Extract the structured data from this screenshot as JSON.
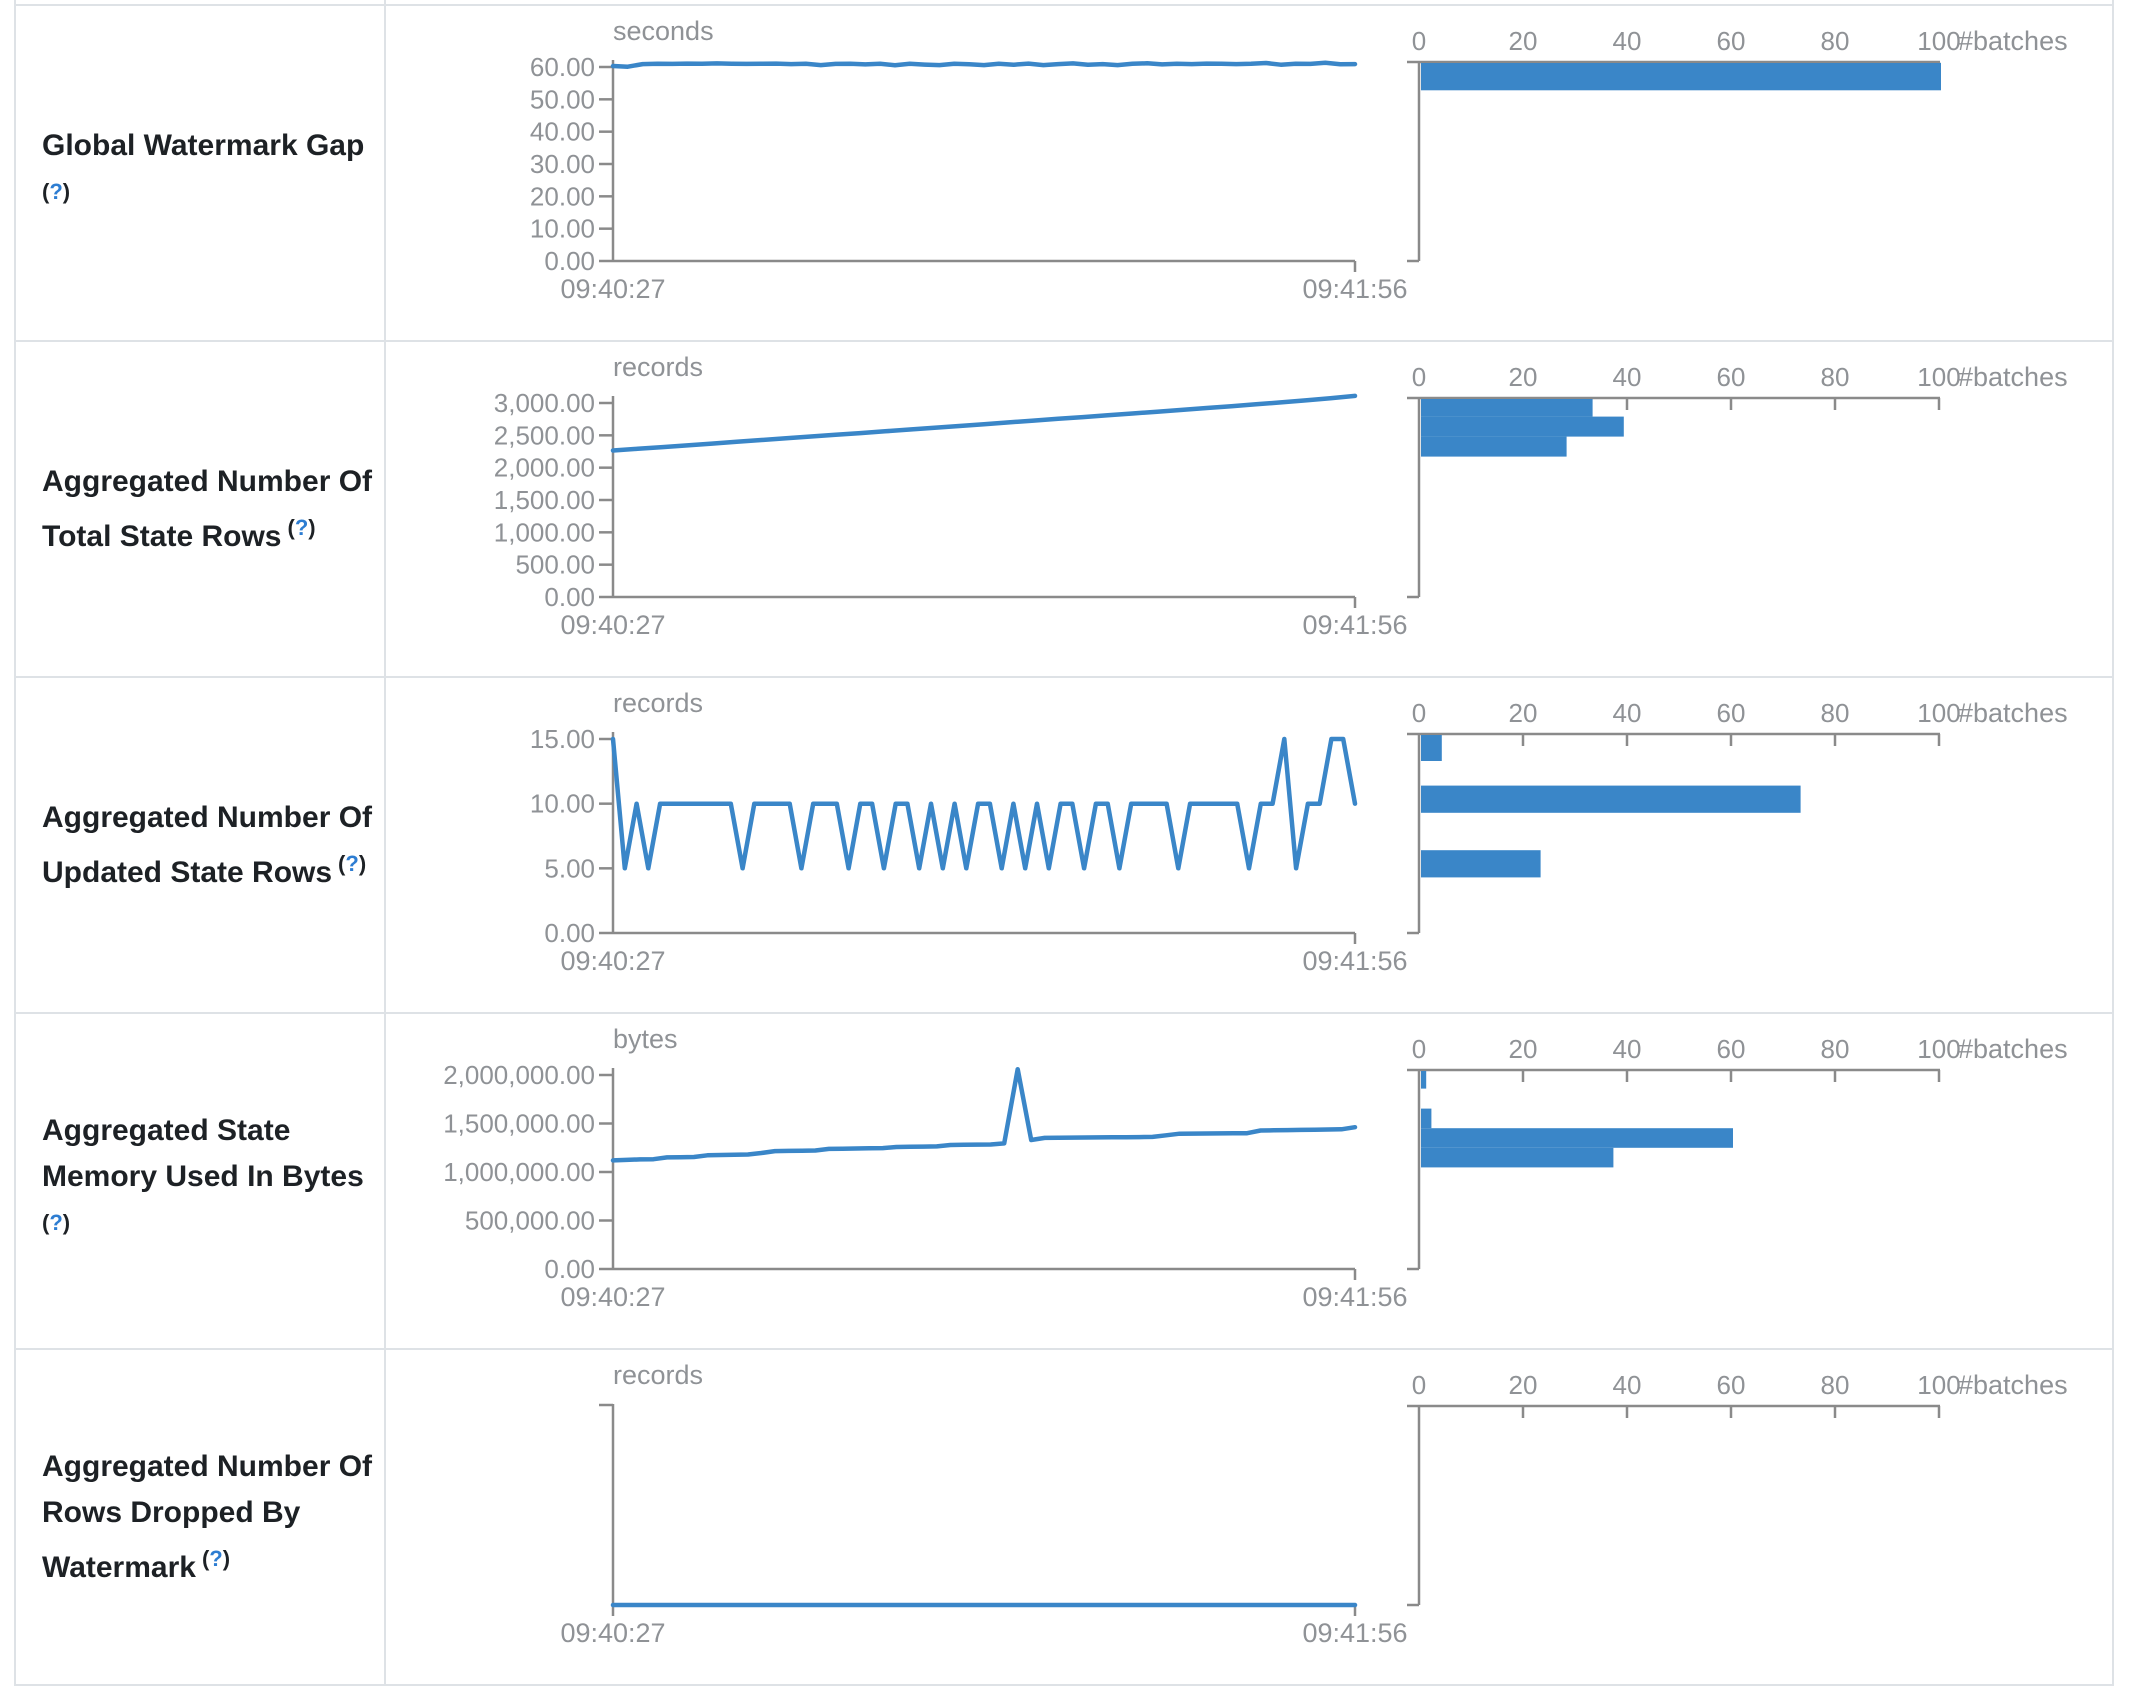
{
  "colors": {
    "series_blue": "#3a86c8",
    "axis_gray": "#8a8a8a",
    "tick_text_gray": "#8f9296",
    "label_text": "#1d2125",
    "help_link_blue": "#2d7dd2",
    "table_border": "#dee2e6"
  },
  "x_axis": {
    "start_label": "09:40:27",
    "end_label": "09:41:56"
  },
  "histogram_axis": {
    "tick_values": [
      0,
      20,
      40,
      60,
      80,
      100
    ],
    "tick_labels": [
      "0",
      "20",
      "40",
      "60",
      "80",
      "100"
    ],
    "axis_label": "#batches",
    "max": 100
  },
  "rows": [
    {
      "label_lines": [
        "Global Watermark Gap",
        ""
      ],
      "help": {
        "open": "(",
        "mark": "?",
        "close": ")"
      }
    },
    {
      "label_lines": [
        "Aggregated Number Of",
        "Total State Rows"
      ],
      "help": {
        "open": "(",
        "mark": "?",
        "close": ")"
      }
    },
    {
      "label_lines": [
        "Aggregated Number Of",
        "Updated State Rows"
      ],
      "help": {
        "open": "(",
        "mark": "?",
        "close": ")"
      }
    },
    {
      "label_lines": [
        "Aggregated State",
        "Memory Used In Bytes",
        ""
      ],
      "help": {
        "open": "(",
        "mark": "?",
        "close": ")"
      }
    },
    {
      "label_lines": [
        "Aggregated Number Of",
        "Rows Dropped By",
        "Watermark"
      ],
      "help": {
        "open": "(",
        "mark": "?",
        "close": ")"
      }
    }
  ],
  "chart_data": [
    {
      "title": "Global Watermark Gap",
      "type": "line",
      "timeline": {
        "unit": "seconds",
        "x_range": [
          "09:40:27",
          "09:41:56"
        ],
        "ylim": [
          0,
          60
        ],
        "ytick_values": [
          0,
          10,
          20,
          30,
          40,
          50,
          60
        ],
        "ytick_labels": [
          "0.00",
          "10.00",
          "20.00",
          "30.00",
          "40.00",
          "50.00",
          "60.00"
        ],
        "values": [
          60.3,
          60.1,
          60.9,
          61.0,
          60.95,
          61.05,
          61.0,
          61.1,
          61.0,
          60.95,
          61.0,
          61.05,
          60.9,
          61.0,
          60.6,
          60.95,
          61.0,
          60.8,
          61.0,
          60.55,
          61.0,
          60.75,
          60.6,
          61.0,
          60.85,
          60.6,
          61.0,
          60.7,
          61.05,
          60.6,
          60.9,
          61.1,
          60.7,
          60.9,
          60.6,
          61.0,
          61.15,
          60.8,
          61.0,
          60.9,
          61.05,
          61.0,
          60.9,
          61.0,
          61.25,
          60.7,
          61.0,
          60.95,
          61.3,
          60.85,
          60.9
        ]
      },
      "histogram": {
        "xlabel": "#batches",
        "xlim": [
          0,
          100
        ],
        "bins": [
          {
            "lo": 52.8,
            "hi": 61.4,
            "count": 100
          }
        ]
      }
    },
    {
      "title": "Aggregated Number Of Total State Rows",
      "type": "line",
      "timeline": {
        "unit": "records",
        "x_range": [
          "09:40:27",
          "09:41:56"
        ],
        "ylim": [
          0,
          3000
        ],
        "ytick_values": [
          0,
          500,
          1000,
          1500,
          2000,
          2500,
          3000
        ],
        "ytick_labels": [
          "0.00",
          "500.00",
          "1,000.00",
          "1,500.00",
          "2,000.00",
          "2,500.00",
          "3,000.00"
        ],
        "values": [
          2265,
          2292,
          2318,
          2345,
          2372,
          2400,
          2428,
          2455,
          2482,
          2508,
          2535,
          2562,
          2590,
          2618,
          2645,
          2672,
          2700,
          2728,
          2755,
          2782,
          2810,
          2838,
          2866,
          2894,
          2922,
          2950,
          2980,
          3010,
          3040,
          3075,
          3110
        ]
      },
      "histogram": {
        "xlabel": "#batches",
        "xlim": [
          0,
          100
        ],
        "bins": [
          {
            "lo": 2790,
            "hi": 3110,
            "count": 33
          },
          {
            "lo": 2480,
            "hi": 2790,
            "count": 39
          },
          {
            "lo": 2170,
            "hi": 2480,
            "count": 28
          }
        ]
      }
    },
    {
      "title": "Aggregated Number Of Updated State Rows",
      "type": "line",
      "timeline": {
        "unit": "records",
        "x_range": [
          "09:40:27",
          "09:41:56"
        ],
        "ylim": [
          0,
          15
        ],
        "ytick_values": [
          0,
          5,
          10,
          15
        ],
        "ytick_labels": [
          "0.00",
          "5.00",
          "10.00",
          "15.00"
        ],
        "values": [
          15,
          5,
          10,
          5,
          10,
          10,
          10,
          10,
          10,
          10,
          10,
          5,
          10,
          10,
          10,
          10,
          5,
          10,
          10,
          10,
          5,
          10,
          10,
          5,
          10,
          10,
          5,
          10,
          5,
          10,
          5,
          10,
          10,
          5,
          10,
          5,
          10,
          5,
          10,
          10,
          5,
          10,
          10,
          5,
          10,
          10,
          10,
          10,
          5,
          10,
          10,
          10,
          10,
          10,
          5,
          10,
          10,
          15,
          5,
          10,
          10,
          15,
          15,
          10
        ]
      },
      "histogram": {
        "xlabel": "#batches",
        "xlim": [
          0,
          100
        ],
        "bins": [
          {
            "lo": 13.3,
            "hi": 15.4,
            "count": 4
          },
          {
            "lo": 9.3,
            "hi": 11.4,
            "count": 73
          },
          {
            "lo": 4.3,
            "hi": 6.4,
            "count": 23
          }
        ]
      }
    },
    {
      "title": "Aggregated State Memory Used In Bytes",
      "type": "line",
      "timeline": {
        "unit": "bytes",
        "x_range": [
          "09:40:27",
          "09:41:56"
        ],
        "ylim": [
          0,
          2000000
        ],
        "ytick_values": [
          0,
          500000,
          1000000,
          1500000,
          2000000
        ],
        "ytick_labels": [
          "0.00",
          "500,000.00",
          "1,000,000.00",
          "1,500,000.00",
          "2,000,000.00"
        ],
        "values": [
          1120000,
          1125000,
          1130000,
          1132000,
          1150000,
          1152000,
          1155000,
          1172000,
          1175000,
          1178000,
          1180000,
          1196000,
          1215000,
          1218000,
          1220000,
          1222000,
          1238000,
          1240000,
          1242000,
          1244000,
          1246000,
          1258000,
          1260000,
          1262000,
          1264000,
          1278000,
          1280000,
          1282000,
          1284000,
          1295000,
          2060000,
          1330000,
          1352000,
          1354000,
          1355000,
          1356000,
          1357000,
          1358000,
          1359000,
          1360000,
          1362000,
          1378000,
          1395000,
          1396000,
          1397000,
          1398000,
          1399000,
          1400000,
          1428000,
          1430000,
          1432000,
          1434000,
          1436000,
          1438000,
          1440000,
          1462000
        ]
      },
      "histogram": {
        "xlabel": "#batches",
        "xlim": [
          0,
          100
        ],
        "bins": [
          {
            "lo": 1860000,
            "hi": 2062000,
            "count": 1
          },
          {
            "lo": 1452000,
            "hi": 1654000,
            "count": 2
          },
          {
            "lo": 1250000,
            "hi": 1452000,
            "count": 60
          },
          {
            "lo": 1048000,
            "hi": 1250000,
            "count": 37
          }
        ]
      }
    },
    {
      "title": "Aggregated Number Of Rows Dropped By Watermark",
      "type": "line",
      "timeline": {
        "unit": "records",
        "x_range": [
          "09:40:27",
          "09:41:56"
        ],
        "ylim": [
          0,
          1
        ],
        "ytick_values": [],
        "ytick_labels": [],
        "values": [
          0,
          0
        ]
      },
      "histogram": {
        "xlabel": "#batches",
        "xlim": [
          0,
          100
        ],
        "bins": []
      }
    }
  ]
}
